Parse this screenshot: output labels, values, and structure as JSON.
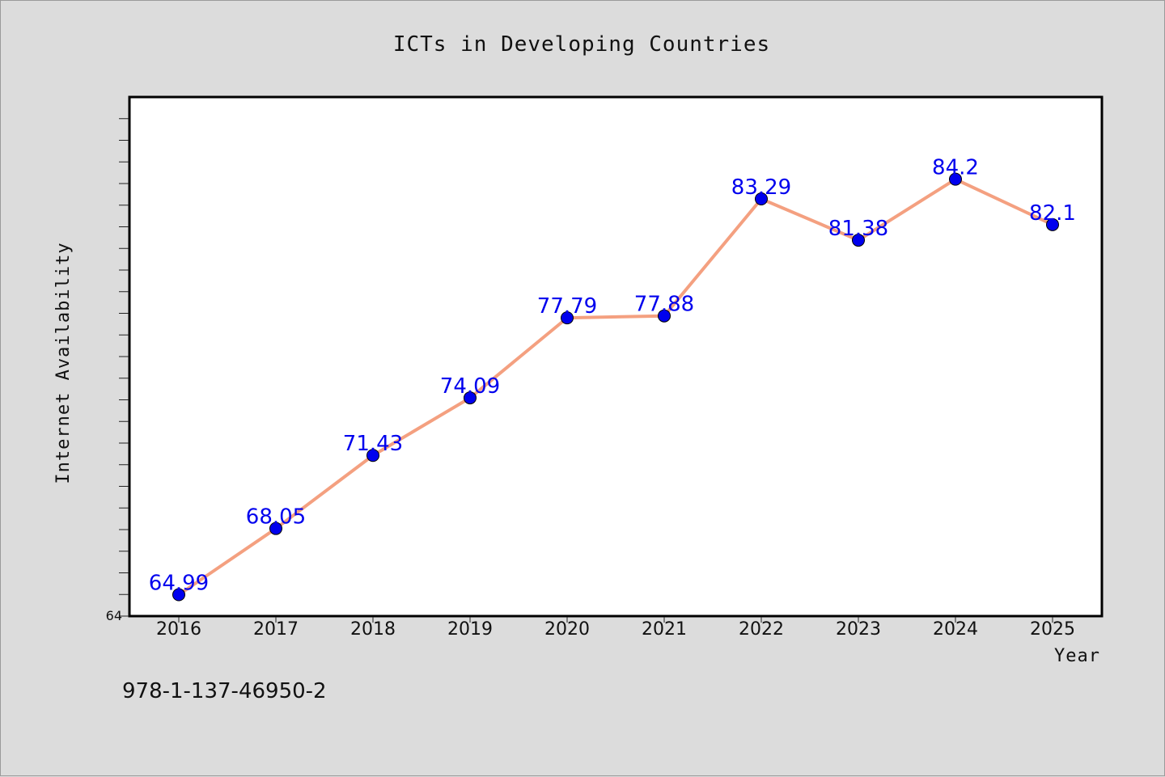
{
  "chart_data": {
    "type": "line",
    "title": "ICTs in Developing Countries",
    "xlabel": "Year",
    "ylabel": "Internet Availability",
    "categories": [
      "2016",
      "2017",
      "2018",
      "2019",
      "2020",
      "2021",
      "2022",
      "2023",
      "2024",
      "2025"
    ],
    "series": [
      {
        "values": [
          64.99,
          68.05,
          71.43,
          74.09,
          77.79,
          77.88,
          83.29,
          81.38,
          84.2,
          82.1
        ],
        "line_color": "#f4a080",
        "marker_color": "#0000ee"
      }
    ],
    "y_tick_labels": [
      "64"
    ],
    "ylim": [
      64,
      88
    ],
    "grid": false,
    "legend": "none"
  },
  "footer": {
    "isbn": "978-1-137-46950-2"
  }
}
